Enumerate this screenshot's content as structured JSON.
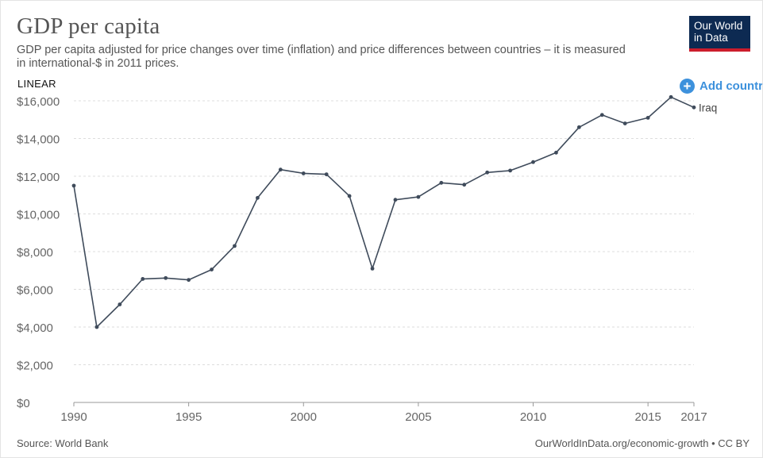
{
  "header": {
    "title": "GDP per capita",
    "subtitle": "GDP per capita adjusted for price changes over time (inflation) and price differences between countries – it is measured in international-$ in 2011 prices.",
    "logo_line1": "Our World",
    "logo_line2": "in Data"
  },
  "controls": {
    "scale_label": "LINEAR",
    "add_country_label": "Add countr",
    "add_icon": "plus-circle-icon"
  },
  "footer": {
    "source": "Source: World Bank",
    "attribution": "OurWorldInData.org/economic-growth • CC BY"
  },
  "colors": {
    "line": "#3f4b5b",
    "accent": "#3d91dc",
    "logo_bg": "#0d2a52",
    "logo_bar": "#cc1d2c",
    "grid": "#dddddd"
  },
  "chart_data": {
    "type": "line",
    "title": "GDP per capita",
    "xlabel": "",
    "ylabel": "",
    "xlim": [
      1990,
      2017
    ],
    "ylim": [
      0,
      16000
    ],
    "grid": true,
    "y_ticks": [
      0,
      2000,
      4000,
      6000,
      8000,
      10000,
      12000,
      14000,
      16000
    ],
    "y_tick_labels": [
      "$0",
      "$2,000",
      "$4,000",
      "$6,000",
      "$8,000",
      "$10,000",
      "$12,000",
      "$14,000",
      "$16,000"
    ],
    "x_ticks": [
      1990,
      1995,
      2000,
      2005,
      2010,
      2015,
      2017
    ],
    "x_tick_labels": [
      "1990",
      "1995",
      "2000",
      "2005",
      "2010",
      "2015",
      "2017"
    ],
    "series": [
      {
        "name": "Iraq",
        "x": [
          1990,
          1991,
          1992,
          1993,
          1994,
          1995,
          1996,
          1997,
          1998,
          1999,
          2000,
          2001,
          2002,
          2003,
          2004,
          2005,
          2006,
          2007,
          2008,
          2009,
          2010,
          2011,
          2012,
          2013,
          2014,
          2015,
          2016,
          2017
        ],
        "y": [
          11500,
          4000,
          5200,
          6550,
          6600,
          6500,
          7050,
          8300,
          10850,
          12350,
          12150,
          12100,
          10950,
          7100,
          10750,
          10900,
          11650,
          11550,
          12200,
          12300,
          12750,
          13250,
          14600,
          15250,
          14800,
          15100,
          16200,
          15650
        ]
      }
    ]
  }
}
